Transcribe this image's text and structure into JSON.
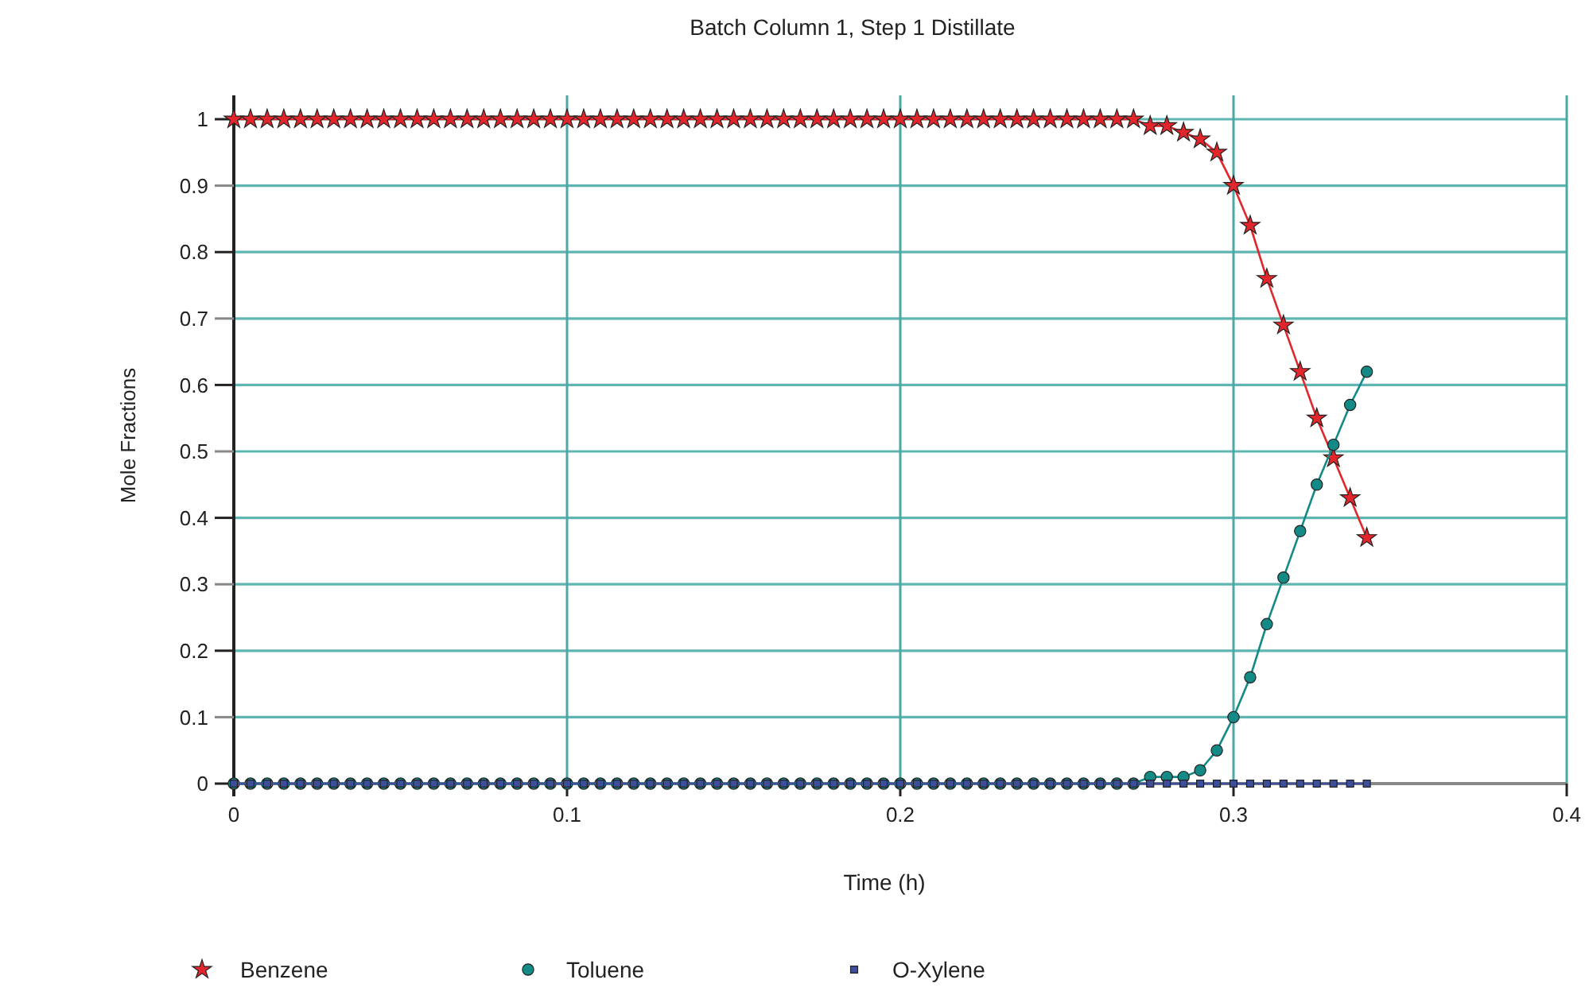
{
  "chart_data": {
    "type": "line",
    "title": "Batch Column 1, Step 1 Distillate",
    "xlabel": "Time (h)",
    "ylabel": "Mole Fractions",
    "x": [
      0,
      0.005,
      0.01,
      0.015,
      0.02,
      0.025,
      0.03,
      0.035,
      0.04,
      0.045,
      0.05,
      0.055,
      0.06,
      0.065,
      0.07,
      0.075,
      0.08,
      0.085,
      0.09,
      0.095,
      0.1,
      0.105,
      0.11,
      0.115,
      0.12,
      0.125,
      0.13,
      0.135,
      0.14,
      0.145,
      0.15,
      0.155,
      0.16,
      0.165,
      0.17,
      0.175,
      0.18,
      0.185,
      0.19,
      0.195,
      0.2,
      0.205,
      0.21,
      0.215,
      0.22,
      0.225,
      0.23,
      0.235,
      0.24,
      0.245,
      0.25,
      0.255,
      0.26,
      0.265,
      0.27,
      0.275,
      0.28,
      0.285,
      0.29,
      0.295,
      0.3,
      0.305,
      0.31,
      0.315,
      0.32,
      0.325,
      0.33,
      0.335,
      0.34
    ],
    "series": [
      {
        "name": "Benzene",
        "color": "#e3262b",
        "marker": "star",
        "values": [
          1,
          1,
          1,
          1,
          1,
          1,
          1,
          1,
          1,
          1,
          1,
          1,
          1,
          1,
          1,
          1,
          1,
          1,
          1,
          1,
          1,
          1,
          1,
          1,
          1,
          1,
          1,
          1,
          1,
          1,
          1,
          1,
          1,
          1,
          1,
          1,
          1,
          1,
          1,
          1,
          1,
          1,
          1,
          1,
          1,
          1,
          1,
          1,
          1,
          1,
          1,
          1,
          1,
          1,
          1,
          0.99,
          0.99,
          0.98,
          0.97,
          0.95,
          0.9,
          0.84,
          0.76,
          0.69,
          0.62,
          0.55,
          0.49,
          0.43,
          0.37
        ]
      },
      {
        "name": "Toluene",
        "color": "#138a86",
        "marker": "circle",
        "values": [
          0,
          0,
          0,
          0,
          0,
          0,
          0,
          0,
          0,
          0,
          0,
          0,
          0,
          0,
          0,
          0,
          0,
          0,
          0,
          0,
          0,
          0,
          0,
          0,
          0,
          0,
          0,
          0,
          0,
          0,
          0,
          0,
          0,
          0,
          0,
          0,
          0,
          0,
          0,
          0,
          0,
          0,
          0,
          0,
          0,
          0,
          0,
          0,
          0,
          0,
          0,
          0,
          0,
          0,
          0,
          0.01,
          0.01,
          0.01,
          0.02,
          0.05,
          0.1,
          0.16,
          0.24,
          0.31,
          0.38,
          0.45,
          0.51,
          0.57,
          0.62
        ]
      },
      {
        "name": "O-Xylene",
        "color": "#3d4f9c",
        "marker": "square",
        "values": [
          0,
          0,
          0,
          0,
          0,
          0,
          0,
          0,
          0,
          0,
          0,
          0,
          0,
          0,
          0,
          0,
          0,
          0,
          0,
          0,
          0,
          0,
          0,
          0,
          0,
          0,
          0,
          0,
          0,
          0,
          0,
          0,
          0,
          0,
          0,
          0,
          0,
          0,
          0,
          0,
          0,
          0,
          0,
          0,
          0,
          0,
          0,
          0,
          0,
          0,
          0,
          0,
          0,
          0,
          0,
          0,
          0,
          0,
          0,
          0,
          0,
          0,
          0,
          0,
          0,
          0,
          0,
          0,
          0
        ]
      }
    ],
    "xlim": [
      0,
      0.4
    ],
    "xticks": [
      0,
      0.1,
      0.2,
      0.3,
      0.4
    ],
    "ylim": [
      0,
      1
    ],
    "yticks": [
      0,
      0.1,
      0.2,
      0.3,
      0.4,
      0.5,
      0.6,
      0.7,
      0.8,
      0.9,
      1
    ],
    "grid": true,
    "legend": "bottom",
    "line_style": "solid"
  }
}
